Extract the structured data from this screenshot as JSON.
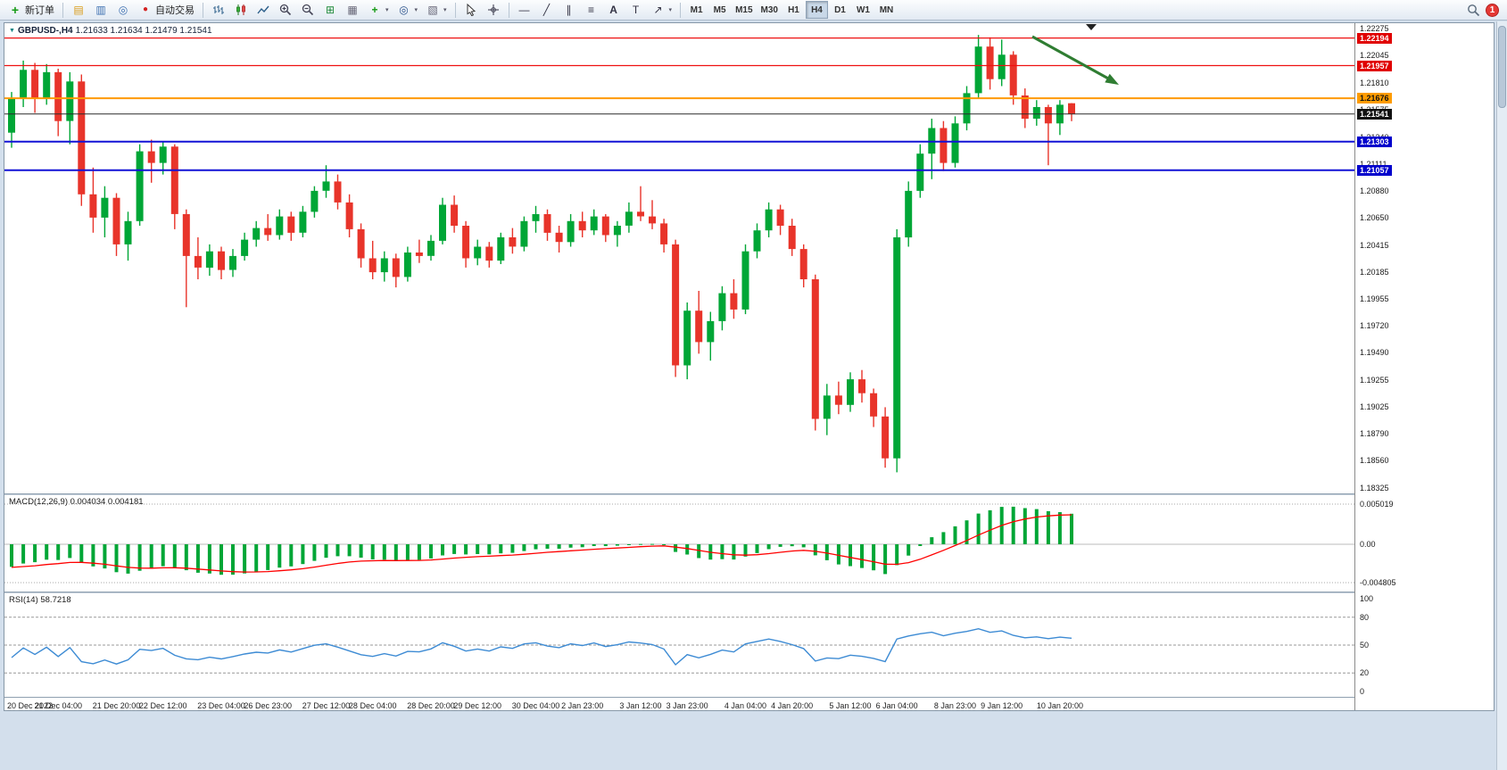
{
  "toolbar": {
    "new_order_label": "新订单",
    "autotrading_label": "自动交易",
    "timeframes": [
      "M1",
      "M5",
      "M15",
      "M30",
      "H1",
      "H4",
      "D1",
      "W1",
      "MN"
    ],
    "active_timeframe": "H4",
    "notification_count": "1",
    "drawing_tools": {
      "hline": "—",
      "trendline": "╱",
      "channel": "∥",
      "fibonacci": "≡",
      "text": "A",
      "label": "T",
      "arrows": "↗"
    }
  },
  "chart": {
    "symbol": "GBPUSD-,H4",
    "ohlc": "1.21633 1.21634 1.21479 1.21541",
    "price_max": 1.22275,
    "price_min": 1.18325,
    "colors": {
      "up": "#00a636",
      "down": "#e8342a",
      "line_red": "#ee1111",
      "line_blue": "#1212d6",
      "line_orange": "#ff9900",
      "bid_line": "#2b2b2b",
      "arrow": "#2f7d32",
      "macd_hist": "#00a636",
      "macd_signal": "#ff0000",
      "rsi_line": "#3d8bd4"
    },
    "y_ticks": [
      "1.22275",
      "1.22045",
      "1.21810",
      "1.21575",
      "1.21340",
      "1.21111",
      "1.20880",
      "1.20650",
      "1.20415",
      "1.20185",
      "1.19955",
      "1.19720",
      "1.19490",
      "1.19255",
      "1.19025",
      "1.18790",
      "1.18560",
      "1.18325"
    ],
    "hlines": [
      {
        "price": 1.22194,
        "label": "1.22194",
        "color": "red"
      },
      {
        "price": 1.21957,
        "label": "1.21957",
        "color": "red"
      },
      {
        "price": 1.21676,
        "label": "1.21676",
        "color": "orange"
      },
      {
        "price": 1.21541,
        "label": "1.21541",
        "color": "black"
      },
      {
        "price": 1.21303,
        "label": "1.21303",
        "color": "blue"
      },
      {
        "price": 1.21057,
        "label": "1.21057",
        "color": "blue"
      }
    ],
    "x_labels": [
      {
        "text": "20 Dec 2022",
        "bar": 0
      },
      {
        "text": "21 Dec 04:00",
        "bar": 4
      },
      {
        "text": "21 Dec 20:00",
        "bar": 9
      },
      {
        "text": "22 Dec 12:00",
        "bar": 13
      },
      {
        "text": "23 Dec 04:00",
        "bar": 18
      },
      {
        "text": "26 Dec 23:00",
        "bar": 22
      },
      {
        "text": "27 Dec 12:00",
        "bar": 27
      },
      {
        "text": "28 Dec 04:00",
        "bar": 31
      },
      {
        "text": "28 Dec 20:00",
        "bar": 36
      },
      {
        "text": "29 Dec 12:00",
        "bar": 40
      },
      {
        "text": "30 Dec 04:00",
        "bar": 45
      },
      {
        "text": "2 Jan 23:00",
        "bar": 49
      },
      {
        "text": "3 Jan 12:00",
        "bar": 54
      },
      {
        "text": "3 Jan 23:00",
        "bar": 58
      },
      {
        "text": "4 Jan 04:00",
        "bar": 63
      },
      {
        "text": "4 Jan 20:00",
        "bar": 67
      },
      {
        "text": "5 Jan 12:00",
        "bar": 72
      },
      {
        "text": "6 Jan 04:00",
        "bar": 76
      },
      {
        "text": "8 Jan 23:00",
        "bar": 81
      },
      {
        "text": "9 Jan 12:00",
        "bar": 85
      },
      {
        "text": "10 Jan 20:00",
        "bar": 90
      }
    ],
    "candles": [
      [
        1.2138,
        1.2173,
        1.2125,
        1.2168
      ],
      [
        1.2168,
        1.22,
        1.216,
        1.2192
      ],
      [
        1.2192,
        1.2198,
        1.2155,
        1.2168
      ],
      [
        1.2168,
        1.2197,
        1.2162,
        1.219
      ],
      [
        1.219,
        1.2193,
        1.2135,
        1.2148
      ],
      [
        1.2148,
        1.219,
        1.2128,
        1.2182
      ],
      [
        1.2182,
        1.2188,
        1.2075,
        1.2085
      ],
      [
        1.2085,
        1.2108,
        1.2052,
        1.2065
      ],
      [
        1.2065,
        1.2092,
        1.2048,
        1.2082
      ],
      [
        1.2082,
        1.2086,
        1.2032,
        1.2042
      ],
      [
        1.2042,
        1.207,
        1.2028,
        1.2062
      ],
      [
        1.2062,
        1.2128,
        1.2058,
        1.2122
      ],
      [
        1.2122,
        1.2132,
        1.2095,
        1.2112
      ],
      [
        1.2112,
        1.213,
        1.2102,
        1.2126
      ],
      [
        1.2126,
        1.2128,
        1.2055,
        1.2068
      ],
      [
        1.2068,
        1.2072,
        1.1988,
        1.2032
      ],
      [
        1.2032,
        1.2048,
        1.2012,
        1.2022
      ],
      [
        1.2022,
        1.2042,
        1.2015,
        1.2036
      ],
      [
        1.2036,
        1.204,
        1.2012,
        1.202
      ],
      [
        1.202,
        1.2038,
        1.2014,
        1.2032
      ],
      [
        1.2032,
        1.2052,
        1.2028,
        1.2046
      ],
      [
        1.2046,
        1.2062,
        1.204,
        1.2056
      ],
      [
        1.2056,
        1.2068,
        1.2045,
        1.205
      ],
      [
        1.205,
        1.2072,
        1.2046,
        1.2066
      ],
      [
        1.2066,
        1.207,
        1.2045,
        1.2052
      ],
      [
        1.2052,
        1.2075,
        1.2048,
        1.207
      ],
      [
        1.207,
        1.2092,
        1.2065,
        1.2088
      ],
      [
        1.2088,
        1.211,
        1.2082,
        1.2096
      ],
      [
        1.2096,
        1.2102,
        1.2072,
        1.2078
      ],
      [
        1.2078,
        1.2085,
        1.2048,
        1.2055
      ],
      [
        1.2055,
        1.206,
        1.2022,
        1.203
      ],
      [
        1.203,
        1.2045,
        1.2012,
        1.2018
      ],
      [
        1.2018,
        1.2036,
        1.201,
        1.203
      ],
      [
        1.203,
        1.2034,
        1.2005,
        1.2014
      ],
      [
        1.2014,
        1.204,
        1.201,
        1.2035
      ],
      [
        1.2035,
        1.2046,
        1.2026,
        1.2032
      ],
      [
        1.2032,
        1.205,
        1.2028,
        1.2045
      ],
      [
        1.2045,
        1.2082,
        1.2042,
        1.2076
      ],
      [
        1.2076,
        1.2084,
        1.2052,
        1.2058
      ],
      [
        1.2058,
        1.2062,
        1.2022,
        1.203
      ],
      [
        1.203,
        1.2046,
        1.2024,
        1.204
      ],
      [
        1.204,
        1.2044,
        1.2022,
        1.2028
      ],
      [
        1.2028,
        1.2052,
        1.2025,
        1.2048
      ],
      [
        1.2048,
        1.2056,
        1.2034,
        1.204
      ],
      [
        1.204,
        1.2066,
        1.2036,
        1.2062
      ],
      [
        1.2062,
        1.2075,
        1.2052,
        1.2068
      ],
      [
        1.2068,
        1.2072,
        1.2045,
        1.2052
      ],
      [
        1.2052,
        1.2058,
        1.2035,
        1.2044
      ],
      [
        1.2044,
        1.2068,
        1.204,
        1.2062
      ],
      [
        1.2062,
        1.207,
        1.2048,
        1.2054
      ],
      [
        1.2054,
        1.2072,
        1.205,
        1.2066
      ],
      [
        1.2066,
        1.2068,
        1.2044,
        1.205
      ],
      [
        1.205,
        1.2062,
        1.204,
        1.2058
      ],
      [
        1.2058,
        1.2078,
        1.2052,
        1.207
      ],
      [
        1.207,
        1.2092,
        1.2062,
        1.2066
      ],
      [
        1.2066,
        1.208,
        1.2055,
        1.206
      ],
      [
        1.206,
        1.2064,
        1.2035,
        1.2042
      ],
      [
        1.2042,
        1.2046,
        1.1928,
        1.1938
      ],
      [
        1.1938,
        1.1992,
        1.1926,
        1.1985
      ],
      [
        1.1985,
        1.2002,
        1.1948,
        1.1958
      ],
      [
        1.1958,
        1.1984,
        1.1942,
        1.1976
      ],
      [
        1.1976,
        1.2006,
        1.1968,
        1.2
      ],
      [
        1.2,
        1.2012,
        1.1978,
        1.1986
      ],
      [
        1.1986,
        1.2042,
        1.1982,
        1.2036
      ],
      [
        1.2036,
        1.206,
        1.203,
        1.2054
      ],
      [
        1.2054,
        1.2078,
        1.2048,
        1.2072
      ],
      [
        1.2072,
        1.2076,
        1.205,
        1.2058
      ],
      [
        1.2058,
        1.2064,
        1.2032,
        1.2038
      ],
      [
        1.2038,
        1.2042,
        1.2005,
        1.2012
      ],
      [
        1.2012,
        1.2016,
        1.1882,
        1.1892
      ],
      [
        1.1892,
        1.1922,
        1.1878,
        1.1912
      ],
      [
        1.1912,
        1.1924,
        1.1896,
        1.1904
      ],
      [
        1.1904,
        1.1932,
        1.1898,
        1.1926
      ],
      [
        1.1926,
        1.1934,
        1.1906,
        1.1914
      ],
      [
        1.1914,
        1.1918,
        1.1885,
        1.1894
      ],
      [
        1.1894,
        1.1902,
        1.185,
        1.1858
      ],
      [
        1.1858,
        1.2055,
        1.1846,
        1.2048
      ],
      [
        1.2048,
        1.2096,
        1.204,
        1.2088
      ],
      [
        1.2088,
        1.2128,
        1.2082,
        1.212
      ],
      [
        1.212,
        1.215,
        1.2098,
        1.2142
      ],
      [
        1.2142,
        1.2148,
        1.2105,
        1.2112
      ],
      [
        1.2112,
        1.2152,
        1.2108,
        1.2146
      ],
      [
        1.2146,
        1.2178,
        1.214,
        1.2172
      ],
      [
        1.2172,
        1.2222,
        1.2168,
        1.2212
      ],
      [
        1.2212,
        1.222,
        1.2175,
        1.2184
      ],
      [
        1.2184,
        1.2218,
        1.2178,
        1.2205
      ],
      [
        1.2205,
        1.2208,
        1.2162,
        1.217
      ],
      [
        1.217,
        1.2176,
        1.2142,
        1.215
      ],
      [
        1.215,
        1.2166,
        1.2144,
        1.216
      ],
      [
        1.216,
        1.2162,
        1.211,
        1.2146
      ],
      [
        1.2146,
        1.2166,
        1.2136,
        1.2162
      ],
      [
        1.21633,
        1.21634,
        1.21479,
        1.21541
      ]
    ]
  },
  "macd": {
    "label": "MACD(12,26,9) 0.004034 0.004181",
    "y_ticks": [
      "0.005019",
      "0.00",
      "-0.004805"
    ],
    "max": 0.005019,
    "min": -0.004805
  },
  "rsi": {
    "label": "RSI(14) 58.7218",
    "y_ticks": [
      "100",
      "80",
      "50",
      "20",
      "0"
    ],
    "levels": [
      80,
      50,
      20
    ]
  }
}
